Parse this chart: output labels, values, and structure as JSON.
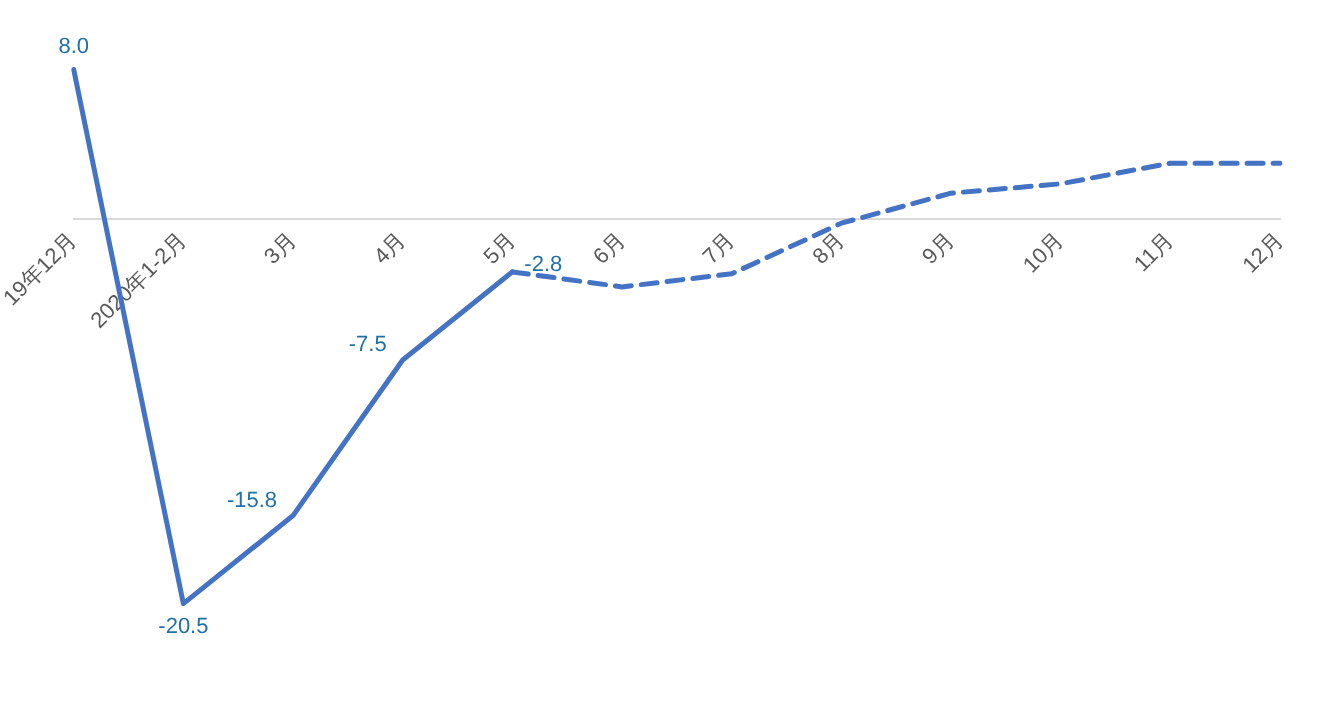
{
  "chart_data": {
    "type": "line",
    "categories": [
      "19年12月",
      "2020年1-2月",
      "3月",
      "4月",
      "5月",
      "6月",
      "7月",
      "8月",
      "9月",
      "10月",
      "11月",
      "12月"
    ],
    "tick_labels": "x",
    "grid": false,
    "legend": false,
    "marker": "none",
    "series": [
      {
        "color": "#4472c4",
        "line_style": "solid",
        "values": [
          8.0,
          -20.5,
          -15.8,
          -7.5,
          -2.8,
          null,
          null,
          null,
          null,
          null,
          null,
          null
        ],
        "value_labels": [
          "8.0",
          "-20.5",
          "-15.8",
          "-7.5",
          "-2.8",
          null,
          null,
          null,
          null,
          null,
          null,
          null
        ]
      },
      {
        "color": "#4472c4",
        "line_style": "dashed",
        "values": [
          null,
          null,
          null,
          null,
          -2.8,
          -3.6,
          -2.9,
          -0.2,
          1.4,
          1.9,
          3.0,
          3.0
        ]
      }
    ]
  }
}
